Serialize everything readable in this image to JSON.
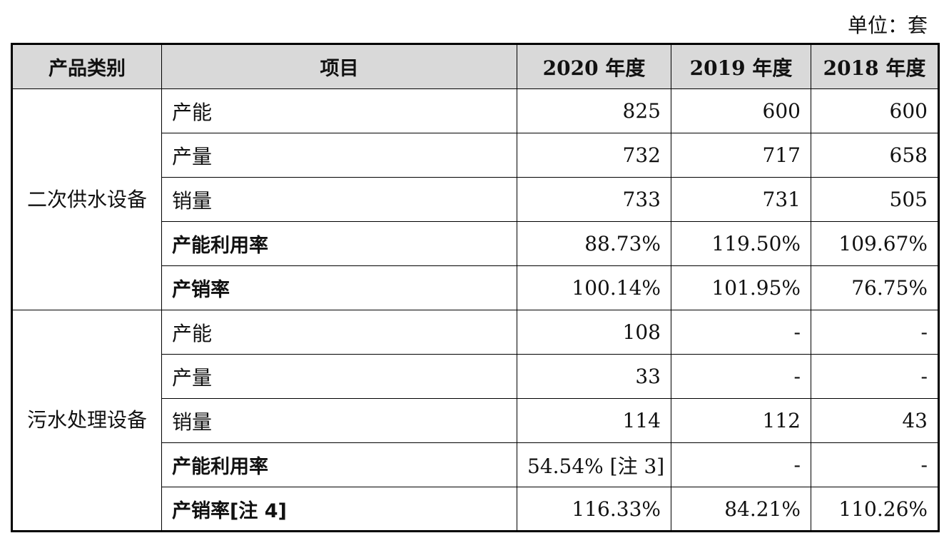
{
  "unit_label": "单位：套",
  "header": {
    "category": "产品类别",
    "item": "项目",
    "y2020": "2020 年度",
    "y2019": "2019 年度",
    "y2018": "2018 年度"
  },
  "highlight_color": "#e0282a",
  "groups": [
    {
      "category": "二次供水设备",
      "rows": [
        {
          "item": "产能",
          "bold": false,
          "y2020": "825",
          "y2019": "600",
          "y2018": "600",
          "highlight2020": true
        },
        {
          "item": "产量",
          "bold": false,
          "y2020": "732",
          "y2019": "717",
          "y2018": "658"
        },
        {
          "item": "销量",
          "bold": false,
          "y2020": "733",
          "y2019": "731",
          "y2018": "505"
        },
        {
          "item": "产能利用率",
          "bold": true,
          "y2020": "88.73%",
          "y2019": "119.50%",
          "y2018": "109.67%"
        },
        {
          "item": "产销率",
          "bold": true,
          "y2020": "100.14%",
          "y2019": "101.95%",
          "y2018": "76.75%"
        }
      ]
    },
    {
      "category": "污水处理设备",
      "rows": [
        {
          "item": "产能",
          "bold": false,
          "y2020": "108",
          "y2019": "-",
          "y2018": "-",
          "highlight2020": true
        },
        {
          "item": "产量",
          "bold": false,
          "y2020": "33",
          "y2019": "-",
          "y2018": "-"
        },
        {
          "item": "销量",
          "bold": false,
          "y2020": "114",
          "y2019": "112",
          "y2018": "43"
        },
        {
          "item": "产能利用率",
          "bold": true,
          "y2020": "54.54% [注 3]",
          "y2019": "-",
          "y2018": "-"
        },
        {
          "item": "产销率[注 4]",
          "bold": true,
          "y2020": "116.33%",
          "y2019": "84.21%",
          "y2018": "110.26%"
        }
      ]
    }
  ]
}
